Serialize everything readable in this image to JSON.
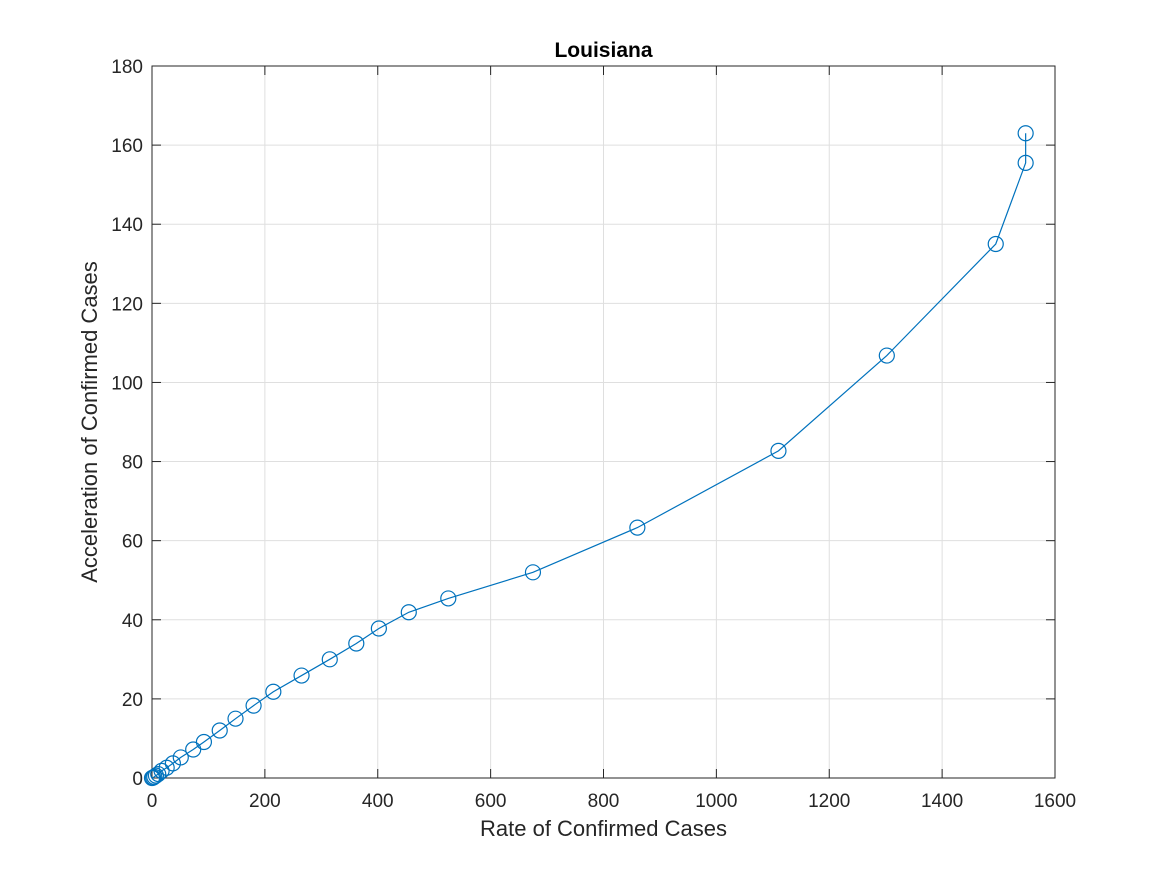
{
  "chart_data": {
    "type": "line",
    "title": "Louisiana",
    "xlabel": "Rate of Confirmed Cases",
    "ylabel": "Acceleration of Confirmed Cases",
    "xlim": [
      0,
      1600
    ],
    "ylim": [
      0,
      180
    ],
    "xticks": [
      0,
      200,
      400,
      600,
      800,
      1000,
      1200,
      1400,
      1600
    ],
    "yticks": [
      0,
      20,
      40,
      60,
      80,
      100,
      120,
      140,
      160,
      180
    ],
    "grid": true,
    "marker": "circle",
    "series": [
      {
        "name": "Louisiana",
        "color": "#0072BD",
        "x": [
          0,
          2,
          4,
          7,
          11,
          17,
          26,
          37,
          51,
          73,
          92,
          120,
          148,
          180,
          215,
          265,
          315,
          362,
          402,
          455,
          525,
          675,
          860,
          1110,
          1302,
          1495,
          1548,
          1548
        ],
        "y": [
          0,
          0.1,
          0.3,
          0.6,
          1.0,
          1.8,
          2.6,
          3.7,
          5.2,
          7.2,
          9.1,
          12.0,
          15.0,
          18.3,
          21.8,
          25.9,
          30.0,
          34.0,
          37.8,
          41.9,
          45.4,
          52.0,
          63.3,
          82.7,
          106.8,
          135.0,
          155.5,
          163.0
        ]
      }
    ]
  }
}
